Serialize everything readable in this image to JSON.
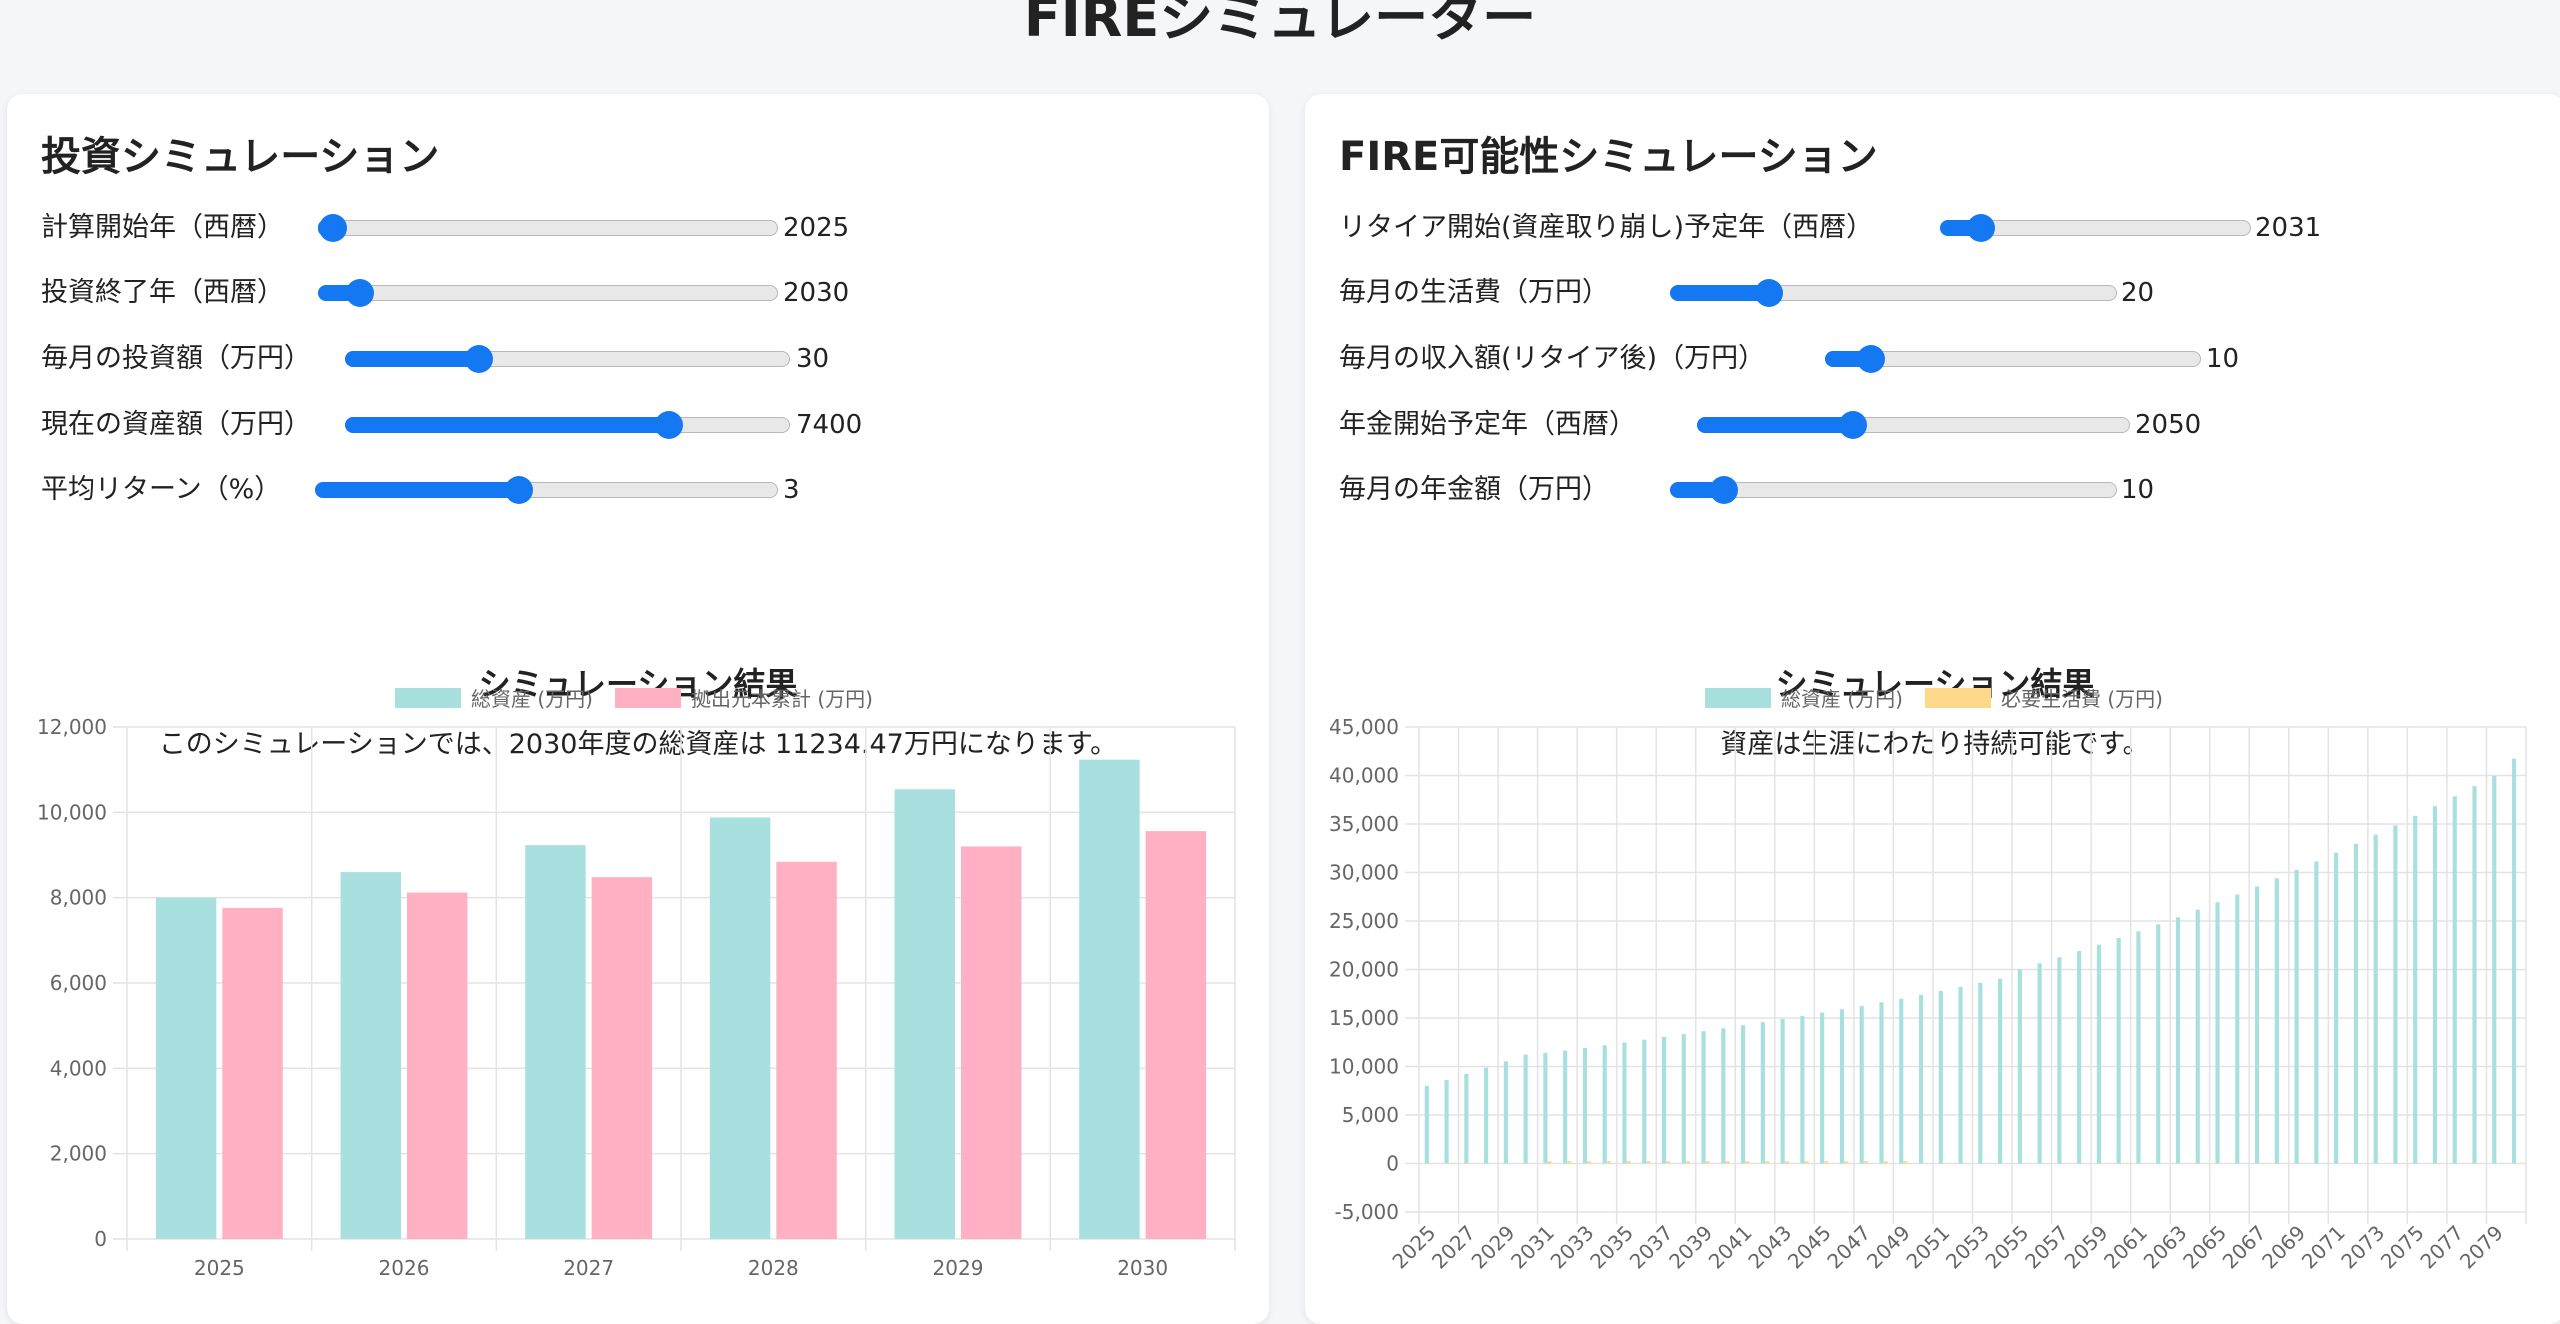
{
  "page": {
    "title": "FIREシミュレーター"
  },
  "colors": {
    "accent": "#1378f2",
    "asset_fill": "#a8e0e0",
    "principal_fill": "#ffb0c2",
    "living_cost_fill": "#ffd98a"
  },
  "investment": {
    "title": "投資シミュレーション",
    "sliders": [
      {
        "label": "計算開始年（西暦）",
        "value": "2025",
        "fraction": 0.03
      },
      {
        "label": "投資終了年（西暦）",
        "value": "2030",
        "fraction": 0.09
      },
      {
        "label": "毎月の投資額（万円）",
        "value": "30",
        "fraction": 0.3
      },
      {
        "label": "現在の資産額（万円）",
        "value": "7400",
        "fraction": 0.73
      },
      {
        "label": "平均リターン（%）",
        "value": "3",
        "fraction": 0.44
      }
    ],
    "result": {
      "title": "シミュレーション結果",
      "text": "このシミュレーションでは、2030年度の総資産は 11234.47万円になります。"
    }
  },
  "fire": {
    "title": "FIRE可能性シミュレーション",
    "sliders": [
      {
        "label": "リタイア開始(資産取り崩し)予定年（西暦）",
        "value": "2031",
        "fraction": 0.13
      },
      {
        "label": "毎月の生活費（万円）",
        "value": "20",
        "fraction": 0.22
      },
      {
        "label": "毎月の収入額(リタイア後)（万円）",
        "value": "10",
        "fraction": 0.12
      },
      {
        "label": "年金開始予定年（西暦）",
        "value": "2050",
        "fraction": 0.36
      },
      {
        "label": "毎月の年金額（万円）",
        "value": "10",
        "fraction": 0.12
      }
    ],
    "result": {
      "title": "シミュレーション結果",
      "text": "資産は生涯にわたり持続可能です。"
    }
  },
  "chart_data": [
    {
      "type": "bar",
      "categories": [
        "2025",
        "2026",
        "2027",
        "2028",
        "2029",
        "2030"
      ],
      "series": [
        {
          "name": "総資産 (万円)",
          "values": [
            8000,
            8600,
            9230,
            9880,
            10540,
            11234
          ]
        },
        {
          "name": "拠出元本累計 (万円)",
          "values": [
            7760,
            8120,
            8480,
            8840,
            9200,
            9560
          ]
        }
      ],
      "ylim": [
        0,
        12000
      ],
      "yticks": [
        "0",
        "2,000",
        "4,000",
        "6,000",
        "8,000",
        "10,000",
        "12,000"
      ],
      "grid": true,
      "legend": "top-center"
    },
    {
      "type": "bar",
      "categories": [
        "2025",
        "2026",
        "2027",
        "2028",
        "2029",
        "2030",
        "2031",
        "2032",
        "2033",
        "2034",
        "2035",
        "2036",
        "2037",
        "2038",
        "2039",
        "2040",
        "2041",
        "2042",
        "2043",
        "2044",
        "2045",
        "2046",
        "2047",
        "2048",
        "2049",
        "2050",
        "2051",
        "2052",
        "2053",
        "2054",
        "2055",
        "2056",
        "2057",
        "2058",
        "2059",
        "2060",
        "2061",
        "2062",
        "2063",
        "2064",
        "2065",
        "2066",
        "2067",
        "2068",
        "2069",
        "2070",
        "2071",
        "2072",
        "2073",
        "2074",
        "2075",
        "2076",
        "2077",
        "2078",
        "2079",
        "2080"
      ],
      "tick_labels": [
        "2025",
        "2027",
        "2029",
        "2031",
        "2033",
        "2035",
        "2037",
        "2039",
        "2041",
        "2043",
        "2045",
        "2047",
        "2049",
        "2051",
        "2053",
        "2055",
        "2057",
        "2059",
        "2061",
        "2063",
        "2065",
        "2067",
        "2069",
        "2071",
        "2073",
        "2075",
        "2077",
        "2079"
      ],
      "series": [
        {
          "name": "総資産 (万円)",
          "values": [
            8000,
            8600,
            9230,
            9880,
            10540,
            11230,
            11400,
            11650,
            11920,
            12200,
            12480,
            12760,
            13050,
            13340,
            13640,
            13940,
            14250,
            14570,
            14890,
            15220,
            15560,
            15900,
            16250,
            16620,
            17000,
            17390,
            17790,
            18200,
            18620,
            19050,
            20040,
            20640,
            21260,
            21900,
            22560,
            23240,
            23940,
            24660,
            25400,
            26160,
            26940,
            27740,
            28560,
            29400,
            30260,
            31140,
            32040,
            32960,
            33900,
            34860,
            35840,
            36840,
            37860,
            38900,
            39960,
            41740
          ]
        },
        {
          "name": "必要生活費 (万円)",
          "values": [
            0,
            0,
            0,
            0,
            0,
            0,
            240,
            240,
            240,
            240,
            240,
            240,
            240,
            240,
            240,
            240,
            240,
            240,
            240,
            240,
            240,
            240,
            240,
            240,
            240,
            0,
            0,
            0,
            0,
            0,
            0,
            0,
            0,
            0,
            0,
            0,
            0,
            0,
            0,
            0,
            0,
            0,
            0,
            0,
            0,
            0,
            0,
            0,
            0,
            0,
            0,
            0,
            0,
            0,
            0,
            0
          ]
        }
      ],
      "ylim": [
        -5000,
        45000
      ],
      "yticks": [
        "-5,000",
        "0",
        "5,000",
        "10,000",
        "15,000",
        "20,000",
        "25,000",
        "30,000",
        "35,000",
        "40,000",
        "45,000"
      ],
      "grid": true,
      "legend": "top-center"
    }
  ]
}
